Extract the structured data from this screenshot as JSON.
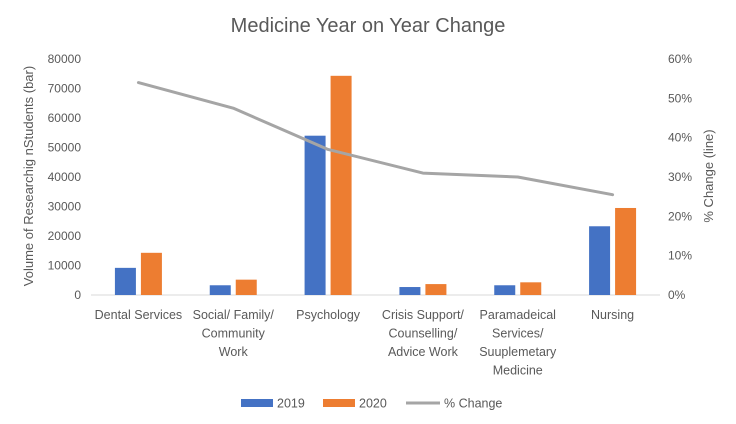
{
  "chart_data": {
    "type": "bar",
    "title": "Medicine Year on Year Change",
    "categories": [
      [
        "Dental Services"
      ],
      [
        "Social/ Family/",
        "Community",
        "Work"
      ],
      [
        "Psychology"
      ],
      [
        "Crisis Support/",
        "Counselling/",
        "Advice Work"
      ],
      [
        "Paramadeical",
        "Services/",
        "Suuplemetary",
        "Medicine"
      ],
      [
        "Nursing"
      ]
    ],
    "series": [
      {
        "name": "2019",
        "type": "bar",
        "axis": "left",
        "color": "#4472C4",
        "values": [
          9200,
          3300,
          54000,
          2700,
          3300,
          23300
        ]
      },
      {
        "name": "2020",
        "type": "bar",
        "axis": "left",
        "color": "#ED7D31",
        "values": [
          14300,
          5200,
          74300,
          3700,
          4300,
          29500
        ]
      },
      {
        "name": "% Change",
        "type": "line",
        "axis": "right",
        "color": "#A5A5A5",
        "values": [
          0.54,
          0.475,
          0.37,
          0.31,
          0.3,
          0.255
        ]
      }
    ],
    "ylabel": "Volume of Researchig nStudents (bar)",
    "y2label": "% Change (line)",
    "ylim": [
      0,
      80000
    ],
    "yticks": [
      "0",
      "10000",
      "20000",
      "30000",
      "40000",
      "50000",
      "60000",
      "70000",
      "80000"
    ],
    "y2lim": [
      0,
      0.6
    ],
    "y2ticks": [
      "0%",
      "10%",
      "20%",
      "30%",
      "40%",
      "50%",
      "60%"
    ],
    "legend_position": "bottom",
    "grid": false
  }
}
